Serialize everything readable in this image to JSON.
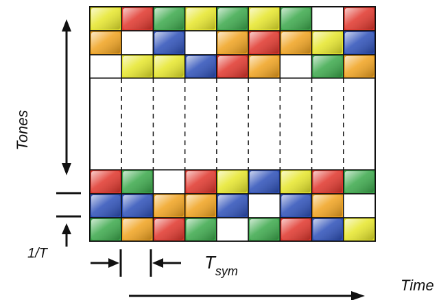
{
  "labels": {
    "y_axis": "Tones",
    "x_axis": "Time",
    "tone_spacing": "1/T",
    "symbol_period_main": "T",
    "symbol_period_sub": "sym"
  },
  "colors": {
    "yellow": "#e6e62a",
    "red": "#e0352b",
    "green": "#3aa84a",
    "orange": "#f0a21e",
    "blue": "#2c4fb8",
    "empty": "#ffffff",
    "line": "#111111"
  },
  "grid": {
    "columns": 9,
    "top_rows": [
      [
        "yellow",
        "red",
        "green",
        "yellow",
        "green",
        "yellow",
        "green",
        "empty",
        "red"
      ],
      [
        "orange",
        "empty",
        "blue",
        "empty",
        "orange",
        "red",
        "orange",
        "yellow",
        "blue"
      ],
      [
        "empty",
        "yellow",
        "yellow",
        "blue",
        "red",
        "orange",
        "empty",
        "green",
        "orange"
      ]
    ],
    "bottom_rows": [
      [
        "red",
        "green",
        "empty",
        "red",
        "yellow",
        "blue",
        "yellow",
        "red",
        "green"
      ],
      [
        "blue",
        "blue",
        "orange",
        "orange",
        "blue",
        "empty",
        "blue",
        "orange",
        "empty"
      ],
      [
        "green",
        "orange",
        "red",
        "green",
        "empty",
        "green",
        "red",
        "blue",
        "yellow"
      ]
    ]
  }
}
